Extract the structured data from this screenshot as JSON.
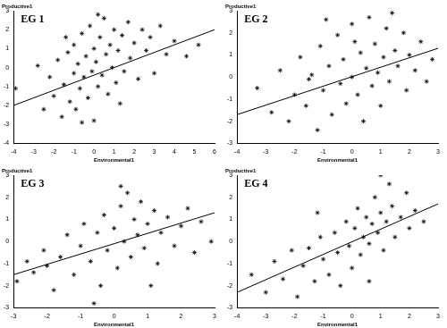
{
  "chart_data": [
    {
      "type": "scatter",
      "title": "EG 1",
      "x_label": "Environmental1",
      "y_label": "Productive1",
      "xlim": [
        -4,
        6
      ],
      "xticks": [
        -4,
        -3,
        -2,
        -1,
        0,
        1,
        2,
        3,
        4,
        5,
        6
      ],
      "ylim": [
        -4,
        3
      ],
      "yticks": [
        -4,
        -3,
        -2,
        -1,
        0,
        1,
        2,
        3
      ],
      "grid": false,
      "series": [
        {
          "type": "scatter",
          "marker": "star",
          "color": "#000000",
          "x": [
            -3.9,
            -2.5,
            -2.2,
            -2.0,
            -1.8,
            -1.6,
            -1.5,
            -1.3,
            -1.2,
            -1.0,
            -1.0,
            -0.9,
            -0.8,
            -0.7,
            -0.6,
            -0.5,
            -0.4,
            -0.3,
            -0.2,
            -0.1,
            0.0,
            0.0,
            0.1,
            0.2,
            0.3,
            0.4,
            0.5,
            0.6,
            0.7,
            0.8,
            0.9,
            1.0,
            1.1,
            1.2,
            1.4,
            1.5,
            1.7,
            1.8,
            2.0,
            2.2,
            2.4,
            2.6,
            2.8,
            3.0,
            3.3,
            3.6,
            4.0,
            4.6,
            5.2,
            -2.8,
            -1.4,
            0.2,
            -0.6,
            1.3
          ],
          "values": [
            -1.1,
            -2.2,
            -0.5,
            -1.5,
            0.4,
            -2.6,
            -0.9,
            0.8,
            -1.8,
            -0.3,
            1.2,
            -2.2,
            0.2,
            -1.1,
            1.8,
            -0.5,
            0.6,
            -1.6,
            2.2,
            -0.2,
            1.0,
            -2.8,
            0.3,
            -1.0,
            1.6,
            -0.4,
            2.6,
            0.7,
            -1.4,
            1.2,
            0.0,
            2.0,
            -0.8,
            0.9,
            1.7,
            -0.2,
            2.4,
            0.5,
            1.3,
            -0.6,
            2.0,
            0.9,
            1.6,
            -0.3,
            2.2,
            0.7,
            1.4,
            0.6,
            1.2,
            0.1,
            1.6,
            2.8,
            -2.9,
            -1.9
          ]
        },
        {
          "type": "line",
          "line_style": "solid",
          "color": "#000000",
          "x": [
            -4,
            6
          ],
          "values": [
            -2.0,
            2.0
          ]
        }
      ]
    },
    {
      "type": "scatter",
      "title": "EG 2",
      "x_label": "Environmental1",
      "y_label": "Productive1",
      "xlim": [
        -4,
        3
      ],
      "xticks": [
        -4,
        -3,
        -2,
        -1,
        0,
        1,
        2,
        3
      ],
      "ylim": [
        -3,
        3
      ],
      "yticks": [
        -3,
        -2,
        -1,
        0,
        1,
        2,
        3
      ],
      "grid": false,
      "series": [
        {
          "type": "scatter",
          "marker": "star",
          "color": "#000000",
          "x": [
            -3.3,
            -2.8,
            -2.5,
            -2.2,
            -2.0,
            -1.8,
            -1.6,
            -1.4,
            -1.2,
            -1.1,
            -1.0,
            -0.8,
            -0.7,
            -0.5,
            -0.4,
            -0.3,
            -0.2,
            0.0,
            0.0,
            0.2,
            0.3,
            0.4,
            0.5,
            0.6,
            0.7,
            0.8,
            0.9,
            1.0,
            1.1,
            1.2,
            1.3,
            1.5,
            1.6,
            1.8,
            1.9,
            2.0,
            2.2,
            2.4,
            2.6,
            2.8,
            -1.5,
            0.1,
            -0.9,
            1.4
          ],
          "values": [
            -0.5,
            -1.6,
            0.3,
            -2.0,
            -0.8,
            0.9,
            -1.3,
            0.1,
            -2.4,
            1.4,
            -0.6,
            0.5,
            -1.7,
            1.9,
            -0.3,
            0.8,
            -1.2,
            2.4,
            0.0,
            -0.8,
            1.1,
            -2.0,
            0.4,
            2.7,
            -0.4,
            1.5,
            0.2,
            -1.3,
            0.9,
            2.2,
            -0.2,
            1.2,
            0.5,
            2.0,
            -0.6,
            1.0,
            0.3,
            1.6,
            -0.2,
            0.8,
            -0.1,
            1.6,
            2.6,
            2.9
          ]
        },
        {
          "type": "line",
          "line_style": "solid",
          "color": "#000000",
          "x": [
            -4,
            3
          ],
          "values": [
            -1.7,
            1.3
          ]
        }
      ]
    },
    {
      "type": "scatter",
      "title": "EG 3",
      "x_label": "Environmental1",
      "y_label": "Productive1",
      "xlim": [
        -3,
        3
      ],
      "xticks": [
        -3,
        -2,
        -1,
        0,
        1,
        2,
        3
      ],
      "ylim": [
        -3,
        3
      ],
      "yticks": [
        -3,
        -2,
        -1,
        0,
        1,
        2,
        3
      ],
      "grid": false,
      "series": [
        {
          "type": "scatter",
          "marker": "star",
          "color": "#000000",
          "x": [
            -2.9,
            -2.6,
            -2.4,
            -2.1,
            -2.0,
            -1.8,
            -1.6,
            -1.4,
            -1.2,
            -1.0,
            -0.9,
            -0.7,
            -0.5,
            -0.4,
            -0.3,
            -0.2,
            0.0,
            0.1,
            0.2,
            0.3,
            0.4,
            0.5,
            0.6,
            0.7,
            0.8,
            0.9,
            1.0,
            1.2,
            1.3,
            1.4,
            1.6,
            1.8,
            2.0,
            2.2,
            2.4,
            2.6,
            2.9,
            -0.6,
            0.2,
            1.1
          ],
          "values": [
            -1.8,
            -0.9,
            -1.4,
            -0.4,
            -1.1,
            -2.2,
            -0.7,
            0.3,
            -1.5,
            -0.2,
            0.8,
            -0.9,
            0.4,
            -2.0,
            1.2,
            -0.4,
            0.6,
            -1.2,
            1.6,
            0.0,
            2.2,
            -0.7,
            1.0,
            0.3,
            1.8,
            -0.3,
            0.8,
            1.4,
            -1.0,
            0.4,
            1.1,
            -0.2,
            0.7,
            1.5,
            -0.5,
            0.9,
            0.0,
            -2.8,
            2.5,
            -2.0
          ]
        },
        {
          "type": "line",
          "line_style": "solid",
          "color": "#000000",
          "x": [
            -3,
            3
          ],
          "values": [
            -1.5,
            1.3
          ]
        }
      ]
    },
    {
      "type": "scatter",
      "title": "EG 4",
      "x_label": "Environmental1",
      "y_label": "Productive1",
      "xlim": [
        -4,
        3
      ],
      "xticks": [
        -4,
        -3,
        -2,
        -1,
        0,
        1,
        2,
        3
      ],
      "ylim": [
        -3,
        3
      ],
      "yticks": [
        -3,
        -2,
        -1,
        0,
        1,
        2,
        3
      ],
      "grid": false,
      "series": [
        {
          "type": "scatter",
          "marker": "star",
          "color": "#000000",
          "x": [
            -3.5,
            -3.0,
            -2.7,
            -2.4,
            -2.1,
            -1.9,
            -1.7,
            -1.5,
            -1.3,
            -1.1,
            -1.0,
            -0.8,
            -0.6,
            -0.5,
            -0.4,
            -0.2,
            -0.1,
            0.0,
            0.1,
            0.2,
            0.3,
            0.4,
            0.5,
            0.6,
            0.7,
            0.8,
            0.9,
            1.0,
            1.1,
            1.2,
            1.3,
            1.4,
            1.5,
            1.7,
            1.9,
            2.0,
            2.2,
            2.5,
            -1.2,
            0.6,
            1.0
          ],
          "values": [
            -1.5,
            -2.3,
            -0.9,
            -1.7,
            -0.4,
            -2.5,
            -1.1,
            -0.3,
            -1.8,
            0.2,
            -0.8,
            -1.5,
            0.4,
            -0.5,
            -2.0,
            0.9,
            -0.2,
            -1.2,
            0.6,
            1.5,
            -0.6,
            0.2,
            1.1,
            -0.1,
            0.8,
            2.0,
            0.4,
            1.3,
            -0.4,
            0.9,
            2.6,
            1.6,
            0.2,
            1.1,
            2.2,
            0.6,
            1.4,
            0.9,
            1.3,
            -1.8,
            3.0
          ]
        },
        {
          "type": "line",
          "line_style": "solid",
          "color": "#000000",
          "x": [
            -4,
            3
          ],
          "values": [
            -2.3,
            1.7
          ]
        }
      ]
    }
  ]
}
